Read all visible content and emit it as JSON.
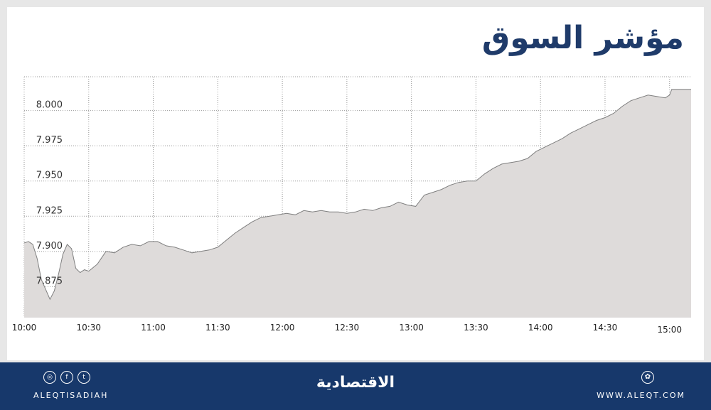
{
  "title": "مؤشر السوق",
  "colors": {
    "title": "#1f3b6a",
    "area_fill": "#dedbda",
    "area_line": "#7f7f7f",
    "grid": "#9a9a9a",
    "footer": "#17386b"
  },
  "chart_data": {
    "type": "area",
    "title": "مؤشر السوق",
    "xlabel": "",
    "ylabel": "",
    "x_ticks": [
      "10:00",
      "10:30",
      "11:00",
      "11:30",
      "12:00",
      "12:30",
      "13:00",
      "13:30",
      "14:00",
      "14:30",
      "15:00"
    ],
    "y_ticks": [
      "7.875",
      "7.900",
      "7.925",
      "7.950",
      "7.975",
      "8.000"
    ],
    "x_range": [
      "10:00",
      "15:10"
    ],
    "ylim": [
      7.853,
      8.024
    ],
    "grid": true,
    "series": [
      {
        "points": [
          [
            "10:00",
            7.906
          ],
          [
            "10:02",
            7.907
          ],
          [
            "10:04",
            7.905
          ],
          [
            "10:06",
            7.895
          ],
          [
            "10:08",
            7.88
          ],
          [
            "10:10",
            7.873
          ],
          [
            "10:12",
            7.866
          ],
          [
            "10:14",
            7.872
          ],
          [
            "10:16",
            7.884
          ],
          [
            "10:18",
            7.898
          ],
          [
            "10:20",
            7.905
          ],
          [
            "10:22",
            7.902
          ],
          [
            "10:24",
            7.888
          ],
          [
            "10:26",
            7.885
          ],
          [
            "10:28",
            7.887
          ],
          [
            "10:30",
            7.886
          ],
          [
            "10:34",
            7.891
          ],
          [
            "10:38",
            7.9
          ],
          [
            "10:42",
            7.899
          ],
          [
            "10:46",
            7.903
          ],
          [
            "10:50",
            7.905
          ],
          [
            "10:54",
            7.904
          ],
          [
            "10:58",
            7.907
          ],
          [
            "11:02",
            7.907
          ],
          [
            "11:06",
            7.904
          ],
          [
            "11:10",
            7.903
          ],
          [
            "11:14",
            7.901
          ],
          [
            "11:18",
            7.899
          ],
          [
            "11:22",
            7.9
          ],
          [
            "11:26",
            7.901
          ],
          [
            "11:30",
            7.903
          ],
          [
            "11:34",
            7.908
          ],
          [
            "11:38",
            7.913
          ],
          [
            "11:42",
            7.917
          ],
          [
            "11:46",
            7.921
          ],
          [
            "11:50",
            7.924
          ],
          [
            "11:54",
            7.925
          ],
          [
            "11:58",
            7.926
          ],
          [
            "12:02",
            7.927
          ],
          [
            "12:06",
            7.926
          ],
          [
            "12:10",
            7.929
          ],
          [
            "12:14",
            7.928
          ],
          [
            "12:18",
            7.929
          ],
          [
            "12:22",
            7.928
          ],
          [
            "12:26",
            7.928
          ],
          [
            "12:30",
            7.927
          ],
          [
            "12:34",
            7.928
          ],
          [
            "12:38",
            7.93
          ],
          [
            "12:42",
            7.929
          ],
          [
            "12:46",
            7.931
          ],
          [
            "12:50",
            7.932
          ],
          [
            "12:54",
            7.935
          ],
          [
            "12:58",
            7.933
          ],
          [
            "13:02",
            7.932
          ],
          [
            "13:06",
            7.94
          ],
          [
            "13:10",
            7.942
          ],
          [
            "13:14",
            7.944
          ],
          [
            "13:18",
            7.947
          ],
          [
            "13:22",
            7.949
          ],
          [
            "13:26",
            7.95
          ],
          [
            "13:30",
            7.95
          ],
          [
            "13:34",
            7.955
          ],
          [
            "13:38",
            7.959
          ],
          [
            "13:42",
            7.962
          ],
          [
            "13:46",
            7.963
          ],
          [
            "13:50",
            7.964
          ],
          [
            "13:54",
            7.966
          ],
          [
            "13:58",
            7.971
          ],
          [
            "14:02",
            7.974
          ],
          [
            "14:06",
            7.977
          ],
          [
            "14:10",
            7.98
          ],
          [
            "14:14",
            7.984
          ],
          [
            "14:18",
            7.987
          ],
          [
            "14:22",
            7.99
          ],
          [
            "14:26",
            7.993
          ],
          [
            "14:30",
            7.995
          ],
          [
            "14:34",
            7.998
          ],
          [
            "14:38",
            8.003
          ],
          [
            "14:42",
            8.007
          ],
          [
            "14:46",
            8.009
          ],
          [
            "14:50",
            8.011
          ],
          [
            "14:54",
            8.01
          ],
          [
            "14:58",
            8.009
          ],
          [
            "15:00",
            8.011
          ],
          [
            "15:01",
            8.015
          ],
          [
            "15:10",
            8.015
          ]
        ]
      }
    ]
  },
  "footer": {
    "handle": "ALEQTISADIAH",
    "site": "WWW.ALEQT.COM",
    "brand": "الاقتصادية",
    "social_icons": [
      "instagram-icon",
      "facebook-icon",
      "twitter-icon"
    ],
    "site_icon": "globe-icon"
  }
}
